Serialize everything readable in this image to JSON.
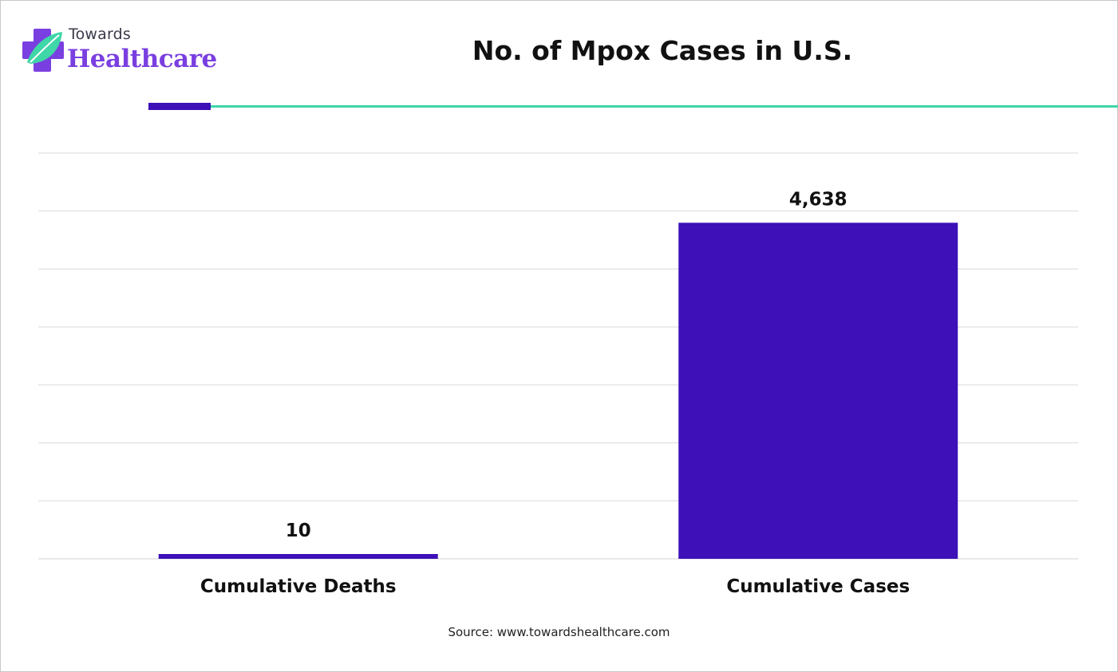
{
  "brand": {
    "top_text": "Towards",
    "main_text": "Healthcare",
    "icon": "medical-cross-leaf-icon",
    "colors": {
      "purple": "#7a3fe0",
      "teal": "#3fd6a8",
      "dark_purple": "#3d10b8"
    }
  },
  "source": "Source: www.towardshealthcare.com",
  "chart_data": {
    "type": "bar",
    "title": "No. of Mpox Cases in U.S.",
    "categories": [
      "Cumulative Deaths",
      "Cumulative Cases"
    ],
    "values": [
      10,
      4638
    ],
    "data_labels": [
      "10",
      "4,638"
    ],
    "ylim": [
      0,
      5600
    ],
    "grid": true,
    "y_axis_labels_shown": false,
    "legend": "none",
    "bar_color": "#3d10b8"
  }
}
